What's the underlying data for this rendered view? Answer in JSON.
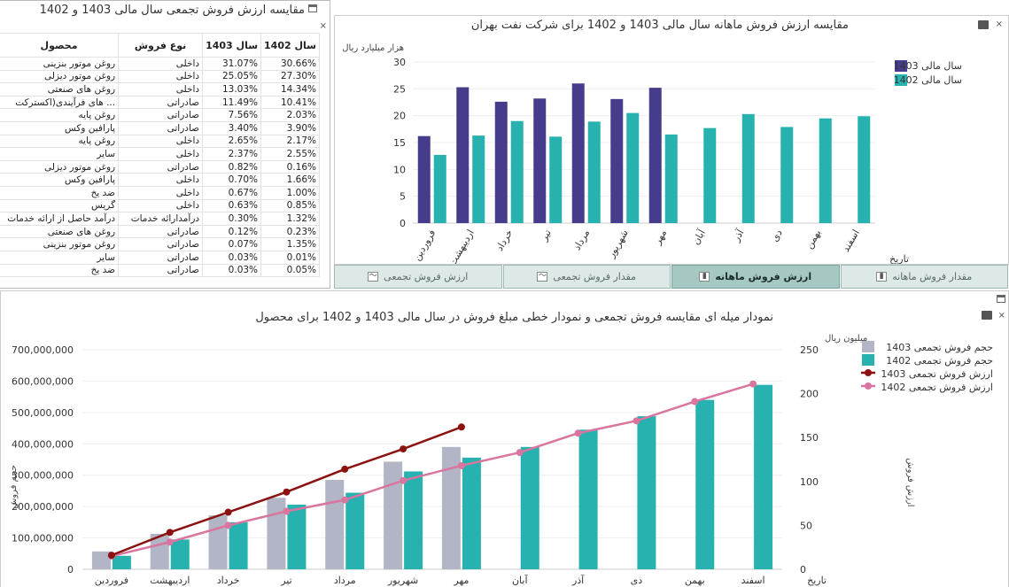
{
  "table_panel": {
    "title": "مقایسه ارزش فروش تجمعی سال مالی 1403 و 1402",
    "headers": {
      "product": "محصول",
      "sale_type": "نوع فروش",
      "y1403": "سال 1403",
      "y1402": "سال 1402"
    },
    "rows": [
      {
        "product": "روغن موتور بنزینی",
        "type": "داخلی",
        "v1403": "31.07%",
        "v1402": "30.66%"
      },
      {
        "product": "روغن موتور دیزلی",
        "type": "داخلی",
        "v1403": "25.05%",
        "v1402": "27.30%"
      },
      {
        "product": "روغن های صنعتی",
        "type": "داخلی",
        "v1403": "13.03%",
        "v1402": "14.34%"
      },
      {
        "product": "... های فرآیندی(اکستر‌کت",
        "type": "صادراتی",
        "v1403": "11.49%",
        "v1402": "10.41%"
      },
      {
        "product": "روغن پایه",
        "type": "صادراتی",
        "v1403": "7.56%",
        "v1402": "2.03%"
      },
      {
        "product": "پارافین وکس",
        "type": "صادراتی",
        "v1403": "3.40%",
        "v1402": "3.90%"
      },
      {
        "product": "روغن پایه",
        "type": "داخلی",
        "v1403": "2.65%",
        "v1402": "2.17%"
      },
      {
        "product": "سایر",
        "type": "داخلی",
        "v1403": "2.37%",
        "v1402": "2.55%"
      },
      {
        "product": "روغن موتور دیزلی",
        "type": "صادراتی",
        "v1403": "0.82%",
        "v1402": "0.16%"
      },
      {
        "product": "پارافین وکس",
        "type": "داخلی",
        "v1403": "0.70%",
        "v1402": "1.66%"
      },
      {
        "product": "ضد یخ",
        "type": "داخلی",
        "v1403": "0.67%",
        "v1402": "1.00%"
      },
      {
        "product": "گریس",
        "type": "داخلی",
        "v1403": "0.63%",
        "v1402": "0.85%"
      },
      {
        "product": "درآمد حاصل از ارائه خدمات",
        "type": "درآمدارائه خدمات",
        "v1403": "0.30%",
        "v1402": "1.32%"
      },
      {
        "product": "روغن های صنعتی",
        "type": "صادراتی",
        "v1403": "0.12%",
        "v1402": "0.23%"
      },
      {
        "product": "روغن موتور بنزینی",
        "type": "صادراتی",
        "v1403": "0.07%",
        "v1402": "1.35%"
      },
      {
        "product": "سایر",
        "type": "صادراتی",
        "v1403": "0.03%",
        "v1402": "0.01%"
      },
      {
        "product": "ضد یخ",
        "type": "صادراتی",
        "v1403": "0.03%",
        "v1402": "0.05%"
      }
    ]
  },
  "monthly_panel": {
    "title": "مقایسه ارزش فروش ماهانه سال مالی 1403 و 1402 برای شرکت نفت بهران"
  },
  "tabs": [
    {
      "label": "ارزش فروش تجمعی",
      "icon": "line-chart-icon",
      "active": false
    },
    {
      "label": "مقدار فروش تجمعی",
      "icon": "line-chart-icon",
      "active": false
    },
    {
      "label": "ارزش فروش ماهانه",
      "icon": "bar-chart-icon",
      "active": true
    },
    {
      "label": "مقدار فروش ماهانه",
      "icon": "bar-chart-icon",
      "active": false
    }
  ],
  "combo_panel": {
    "title": "نمودار میله ای مقایسه فروش تجمعی و نمودار خطی مبلغ فروش در سال مالی 1403 و 1402 برای محصول"
  },
  "colors": {
    "c1403": "#463c8c",
    "c1402": "#27b2b0",
    "grey1403": "#b2b5c6",
    "line1403": "#8b1210",
    "line1402": "#d9759e"
  },
  "chart_data": [
    {
      "type": "bar",
      "ylabel": "هزار میلیارد ریال",
      "xlabel": "تاریخ",
      "ylim": [
        0,
        30
      ],
      "yticks": [
        0,
        5,
        10,
        15,
        20,
        25,
        30
      ],
      "categories": [
        "فروردین",
        "اردیبهشت",
        "خرداد",
        "تیر",
        "مرداد",
        "شهریور",
        "مهر",
        "آبان",
        "آذر",
        "دی",
        "بهمن",
        "اسفند"
      ],
      "series": [
        {
          "name": "سال مالی 1403",
          "values": [
            16.2,
            25.3,
            22.6,
            23.2,
            26.0,
            23.1,
            25.2,
            null,
            null,
            null,
            null,
            null
          ]
        },
        {
          "name": "سال مالی 1402",
          "values": [
            12.7,
            16.3,
            19.0,
            16.1,
            18.9,
            20.5,
            16.5,
            17.7,
            20.3,
            17.9,
            19.5,
            19.9
          ]
        }
      ],
      "legend": "top-right"
    },
    {
      "type": "bar",
      "ylabel": "حجم فروش",
      "y2label": "ارزش فروش",
      "y2unit": "میلیون ریال",
      "xlabel": "تاریخ",
      "ylim": [
        0,
        700000000
      ],
      "yticks": [
        "0",
        "100,000,000",
        "200,000,000",
        "300,000,000",
        "400,000,000",
        "500,000,000",
        "600,000,000",
        "700,000,000"
      ],
      "y2lim": [
        0,
        250
      ],
      "y2ticks": [
        0,
        50,
        100,
        150,
        200,
        250
      ],
      "categories": [
        "فروردین",
        "اردیبهشت",
        "خرداد",
        "تیر",
        "مرداد",
        "شهریور",
        "مهر",
        "آبان",
        "آذر",
        "دی",
        "بهمن",
        "اسفند"
      ],
      "series": [
        {
          "name": "حجم فروش تجمعی 1403",
          "kind": "bar",
          "values": [
            57000000,
            113000000,
            172000000,
            228000000,
            285000000,
            343000000,
            390000000,
            null,
            null,
            null,
            null,
            null
          ]
        },
        {
          "name": "حجم فروش تجمعی 1402",
          "kind": "bar",
          "values": [
            43000000,
            95000000,
            150000000,
            206000000,
            244000000,
            312000000,
            356000000,
            390000000,
            445000000,
            488000000,
            540000000,
            588000000
          ]
        },
        {
          "name": "ارزش فروش تجمعی 1403",
          "kind": "line",
          "axis": "y2",
          "values": [
            16,
            42,
            65,
            88,
            114,
            137,
            162,
            null,
            null,
            null,
            null,
            null
          ]
        },
        {
          "name": "ارزش فروش تجمعی 1402",
          "kind": "line",
          "axis": "y2",
          "values": [
            15,
            31,
            50,
            66,
            79,
            101,
            118,
            133,
            155,
            169,
            191,
            211
          ]
        }
      ],
      "legend": "top-right"
    }
  ]
}
